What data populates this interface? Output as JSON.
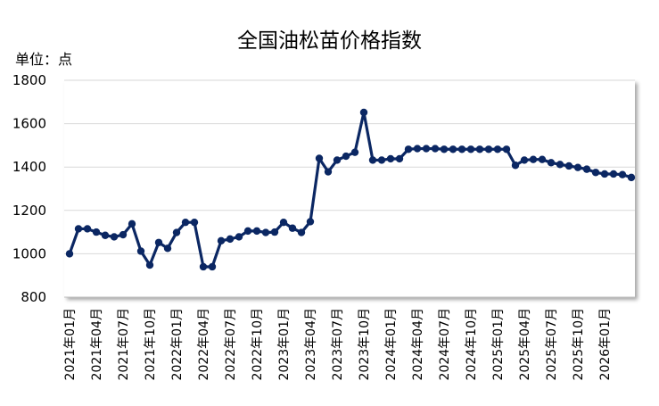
{
  "chart_data": {
    "type": "line",
    "title": "全国油松苗价格指数",
    "unit": "单位：点",
    "ylim": [
      800,
      1800
    ],
    "yticks": [
      800,
      1000,
      1200,
      1400,
      1600,
      1800
    ],
    "line_color": "#0b2763",
    "grid": true,
    "x_tick_labels": [
      "2021年01月",
      "2021年04月",
      "2021年07月",
      "2021年10月",
      "2022年01月",
      "2022年04月",
      "2022年07月",
      "2022年10月",
      "2023年01月",
      "2023年04月",
      "2023年07月",
      "2023年10月",
      "2024年01月",
      "2024年04月",
      "2024年07月",
      "2024年10月",
      "2025年01月",
      "2025年04月",
      "2025年07月",
      "2025年10月",
      "2026年01月"
    ],
    "series": [
      {
        "values": [
          1000,
          1115,
          1115,
          1100,
          1085,
          1078,
          1088,
          1138,
          1012,
          948,
          1052,
          1025,
          1098,
          1145,
          1145,
          940,
          940,
          1060,
          1068,
          1078,
          1105,
          1105,
          1098,
          1100,
          1145,
          1118,
          1098,
          1148,
          1440,
          1378,
          1432,
          1450,
          1468,
          1652,
          1432,
          1432,
          1438,
          1438,
          1482,
          1485,
          1485,
          1485,
          1482,
          1482,
          1482,
          1482,
          1482,
          1482,
          1482,
          1482,
          1408,
          1432,
          1435,
          1435,
          1420,
          1412,
          1405,
          1398,
          1390,
          1375,
          1368,
          1368,
          1365,
          1352
        ]
      }
    ]
  }
}
